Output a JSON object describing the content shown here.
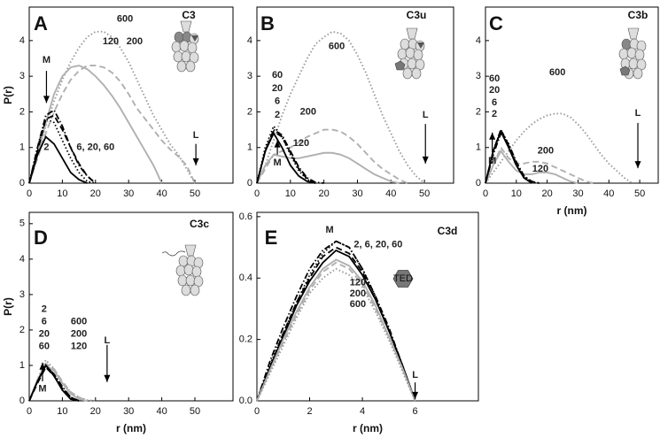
{
  "chart_data": [
    {
      "type": "line",
      "panel": "A",
      "title": "C3",
      "ylabel": "P(r)",
      "x": [
        0,
        2.5,
        5,
        7.5,
        10,
        12.5,
        15,
        17.5,
        20,
        22.5,
        25,
        27.5,
        30,
        32.5,
        35,
        37.5,
        40,
        42.5,
        45,
        47.5,
        50
      ],
      "xlim": [
        0,
        61.5
      ],
      "ylim": [
        0,
        4.94
      ],
      "xticks": [
        0,
        10,
        20,
        30,
        40,
        50
      ],
      "yticks": [
        0,
        1,
        2,
        3,
        4
      ],
      "series": [
        {
          "color": "#9a9a9a",
          "dash": "dotted",
          "values": [
            0,
            0.8,
            1.6,
            2.3,
            2.9,
            3.4,
            3.8,
            4.1,
            4.25,
            4.25,
            4.1,
            3.8,
            3.4,
            2.9,
            2.4,
            1.9,
            1.5,
            1.1,
            0.8,
            0.4,
            0
          ]
        },
        {
          "color": "#b0b0b0",
          "dash": "dashed",
          "values": [
            0,
            0.7,
            1.4,
            2.0,
            2.5,
            2.9,
            3.15,
            3.3,
            3.3,
            3.25,
            3.1,
            2.85,
            2.5,
            2.1,
            1.8,
            1.5,
            1.2,
            0.95,
            0.75,
            0.5,
            0
          ]
        },
        {
          "color": "#b0b0b0",
          "dash": "solid",
          "values": [
            0,
            0.8,
            1.7,
            2.5,
            3.0,
            3.25,
            3.3,
            3.2,
            3.0,
            2.75,
            2.45,
            2.1,
            1.7,
            1.3,
            0.9,
            0.5,
            0,
            null,
            null,
            null,
            null
          ]
        },
        {
          "color": "#000000",
          "dash": "solid",
          "values": [
            0,
            0.8,
            1.3,
            1.1,
            0.7,
            0.3,
            0.1,
            0,
            null,
            null,
            null,
            null,
            null,
            null,
            null,
            null,
            null,
            null,
            null,
            null,
            null
          ]
        },
        {
          "color": "#000000",
          "dash": "dotted",
          "values": [
            0,
            1.0,
            1.8,
            1.7,
            1.2,
            0.7,
            0.3,
            0.05,
            0,
            null,
            null,
            null,
            null,
            null,
            null,
            null,
            null,
            null,
            null,
            null,
            null
          ]
        },
        {
          "color": "#000000",
          "dash": "dashdot",
          "values": [
            0,
            1.0,
            1.9,
            2.05,
            1.6,
            1.0,
            0.5,
            0.2,
            0,
            null,
            null,
            null,
            null,
            null,
            null,
            null,
            null,
            null,
            null,
            null,
            null
          ]
        },
        {
          "color": "#000000",
          "dash": "dashed",
          "values": [
            0,
            0.9,
            1.8,
            1.9,
            1.5,
            1.0,
            0.55,
            0.2,
            0,
            null,
            null,
            null,
            null,
            null,
            null,
            null,
            null,
            null,
            null,
            null,
            null
          ]
        }
      ],
      "annotations": [
        "600",
        "120",
        "200",
        "M",
        "2",
        "6, 20, 60",
        "L"
      ]
    },
    {
      "type": "line",
      "panel": "B",
      "title": "C3u",
      "x": [
        0,
        2.5,
        5,
        7.5,
        10,
        12.5,
        15,
        17.5,
        20,
        22.5,
        25,
        27.5,
        30,
        32.5,
        35,
        37.5,
        40,
        42.5,
        45,
        47.5,
        50
      ],
      "xlim": [
        0,
        58.7
      ],
      "ylim": [
        0,
        4.94
      ],
      "xticks": [
        0,
        10,
        20,
        30,
        40,
        50
      ],
      "yticks": [
        0,
        1,
        2,
        3,
        4
      ],
      "series": [
        {
          "color": "#9a9a9a",
          "dash": "dotted",
          "values": [
            0,
            0.5,
            1.2,
            1.9,
            2.5,
            3.0,
            3.5,
            3.9,
            4.1,
            4.25,
            4.2,
            4.0,
            3.6,
            3.1,
            2.5,
            1.9,
            1.4,
            0.9,
            0.5,
            0.2,
            0
          ]
        },
        {
          "color": "#b0b0b0",
          "dash": "dashed",
          "values": [
            0,
            0.4,
            0.8,
            0.9,
            1.0,
            1.15,
            1.3,
            1.4,
            1.5,
            1.5,
            1.45,
            1.3,
            1.1,
            0.85,
            0.6,
            0.4,
            0.25,
            0.1,
            0,
            null,
            null
          ]
        },
        {
          "color": "#b0b0b0",
          "dash": "solid",
          "values": [
            0,
            0.5,
            0.8,
            0.75,
            0.7,
            0.7,
            0.75,
            0.8,
            0.85,
            0.85,
            0.8,
            0.7,
            0.55,
            0.4,
            0.25,
            0.15,
            0.05,
            0,
            null,
            null,
            null
          ]
        },
        {
          "color": "#000000",
          "dash": "solid",
          "values": [
            0,
            0.9,
            1.4,
            1.0,
            0.5,
            0.2,
            0.05,
            0,
            null,
            null,
            null,
            null,
            null,
            null,
            null,
            null,
            null,
            null,
            null,
            null,
            null
          ]
        },
        {
          "color": "#000000",
          "dash": "dotted",
          "values": [
            0,
            1.0,
            1.6,
            1.3,
            0.8,
            0.35,
            0.1,
            0,
            null,
            null,
            null,
            null,
            null,
            null,
            null,
            null,
            null,
            null,
            null,
            null,
            null
          ]
        },
        {
          "color": "#000000",
          "dash": "dashdot",
          "values": [
            0,
            0.9,
            1.5,
            1.35,
            0.9,
            0.45,
            0.15,
            0.02,
            0,
            null,
            null,
            null,
            null,
            null,
            null,
            null,
            null,
            null,
            null,
            null,
            null
          ]
        },
        {
          "color": "#000000",
          "dash": "dashed",
          "values": [
            0,
            0.9,
            1.45,
            1.3,
            0.85,
            0.4,
            0.12,
            0,
            null,
            null,
            null,
            null,
            null,
            null,
            null,
            null,
            null,
            null,
            null,
            null,
            null
          ]
        }
      ],
      "annotations": [
        "600",
        "60",
        "20",
        "6",
        "2",
        "200",
        "120",
        "M",
        "L"
      ]
    },
    {
      "type": "line",
      "panel": "C",
      "title": "C3b",
      "xlabel": "r (nm)",
      "x": [
        0,
        2.5,
        5,
        7.5,
        10,
        12.5,
        15,
        17.5,
        20,
        22.5,
        25,
        27.5,
        30,
        32.5,
        35,
        37.5,
        40,
        42.5,
        45,
        47.5
      ],
      "xlim": [
        0,
        56
      ],
      "ylim": [
        0,
        4.94
      ],
      "xticks": [
        0,
        10,
        20,
        30,
        40,
        50
      ],
      "yticks": [
        0,
        1,
        2,
        3,
        4
      ],
      "series": [
        {
          "color": "#9a9a9a",
          "dash": "dotted",
          "values": [
            0,
            0.3,
            0.6,
            0.9,
            1.2,
            1.45,
            1.65,
            1.8,
            1.9,
            1.95,
            1.95,
            1.85,
            1.65,
            1.4,
            1.1,
            0.8,
            0.55,
            0.35,
            0.15,
            0
          ]
        },
        {
          "color": "#b0b0b0",
          "dash": "dashed",
          "values": [
            0,
            0.5,
            1.0,
            0.7,
            0.55,
            0.55,
            0.6,
            0.6,
            0.55,
            0.45,
            0.35,
            0.25,
            0.15,
            0.05,
            0,
            null,
            null,
            null,
            null,
            null
          ]
        },
        {
          "color": "#b0b0b0",
          "dash": "solid",
          "values": [
            0,
            0.5,
            0.9,
            0.6,
            0.35,
            0.25,
            0.25,
            0.3,
            0.3,
            0.25,
            0.15,
            0.05,
            0,
            null,
            null,
            null,
            null,
            null,
            null,
            null
          ]
        },
        {
          "color": "#000000",
          "dash": "solid",
          "values": [
            0,
            0.9,
            1.45,
            1.0,
            0.5,
            0.15,
            0,
            null,
            null,
            null,
            null,
            null,
            null,
            null,
            null,
            null,
            null,
            null,
            null,
            null
          ]
        },
        {
          "color": "#000000",
          "dash": "dotted",
          "values": [
            0,
            0.9,
            1.5,
            1.1,
            0.55,
            0.2,
            0.02,
            0,
            null,
            null,
            null,
            null,
            null,
            null,
            null,
            null,
            null,
            null,
            null,
            null
          ]
        },
        {
          "color": "#000000",
          "dash": "dashdot",
          "values": [
            0,
            0.8,
            1.4,
            1.1,
            0.6,
            0.2,
            0.05,
            0,
            null,
            null,
            null,
            null,
            null,
            null,
            null,
            null,
            null,
            null,
            null,
            null
          ]
        },
        {
          "color": "#000000",
          "dash": "dashed",
          "values": [
            0,
            0.9,
            1.5,
            1.05,
            0.5,
            0.15,
            0,
            null,
            null,
            null,
            null,
            null,
            null,
            null,
            null,
            null,
            null,
            null,
            null,
            null
          ]
        }
      ],
      "annotations": [
        "60",
        "20",
        "6",
        "2",
        "600",
        "200",
        "120",
        "M",
        "L"
      ]
    },
    {
      "type": "line",
      "panel": "D",
      "title": "C3c",
      "xlabel": "r (nm)",
      "ylabel": "P(r)",
      "x": [
        0,
        2.5,
        5,
        7.5,
        10,
        12.5,
        15,
        17.5,
        20
      ],
      "xlim": [
        0,
        61.5
      ],
      "ylim": [
        0,
        5.32
      ],
      "xticks": [
        0,
        10,
        20,
        30,
        40,
        50
      ],
      "yticks": [
        0,
        1,
        2,
        3,
        4,
        5
      ],
      "series": [
        {
          "color": "#9a9a9a",
          "dash": "dotted",
          "values": [
            0,
            0.6,
            1.15,
            0.9,
            0.5,
            0.25,
            0.1,
            0.02,
            0
          ]
        },
        {
          "color": "#b0b0b0",
          "dash": "dashed",
          "values": [
            0,
            0.6,
            1.05,
            0.9,
            0.55,
            0.25,
            0.1,
            0,
            null
          ]
        },
        {
          "color": "#b0b0b0",
          "dash": "solid",
          "values": [
            0,
            0.6,
            1.0,
            0.85,
            0.5,
            0.2,
            0.05,
            0,
            null
          ]
        },
        {
          "color": "#000000",
          "dash": "solid",
          "values": [
            0,
            0.55,
            1.0,
            0.7,
            0.3,
            0.05,
            0,
            null,
            null
          ]
        },
        {
          "color": "#000000",
          "dash": "dotted",
          "values": [
            0,
            0.55,
            1.0,
            0.75,
            0.35,
            0.1,
            0,
            null,
            null
          ]
        },
        {
          "color": "#000000",
          "dash": "dashdot",
          "values": [
            0,
            0.55,
            1.0,
            0.75,
            0.4,
            0.1,
            0,
            null,
            null
          ]
        },
        {
          "color": "#000000",
          "dash": "dashed",
          "values": [
            0,
            0.5,
            0.95,
            0.7,
            0.35,
            0.1,
            0,
            null,
            null
          ]
        }
      ],
      "annotations": [
        "2",
        "6",
        "20",
        "60",
        "600",
        "200",
        "120",
        "L",
        "M"
      ]
    },
    {
      "type": "line",
      "panel": "E",
      "title": "C3d",
      "xlabel": "r (nm)",
      "icon_label": "TED",
      "x": [
        0,
        0.5,
        1,
        1.5,
        2,
        2.5,
        3,
        3.5,
        4,
        4.5,
        5,
        5.5,
        6
      ],
      "xlim": [
        0,
        8.4
      ],
      "ylim": [
        0,
        0.614
      ],
      "xticks": [
        0,
        2,
        4,
        6
      ],
      "yticks": [
        {
          "value": 0,
          "label": "0.0"
        },
        0.2,
        0.4,
        0.6
      ],
      "series": [
        {
          "color": "#000000",
          "dash": "solid",
          "values": [
            0,
            0.11,
            0.21,
            0.31,
            0.39,
            0.45,
            0.49,
            0.47,
            0.41,
            0.33,
            0.23,
            0.12,
            0
          ]
        },
        {
          "color": "#000000",
          "dash": "dotted",
          "values": [
            0,
            0.12,
            0.22,
            0.32,
            0.41,
            0.48,
            0.52,
            0.5,
            0.43,
            0.34,
            0.23,
            0.12,
            0
          ]
        },
        {
          "color": "#000000",
          "dash": "dashdot",
          "values": [
            0,
            0.13,
            0.24,
            0.34,
            0.43,
            0.49,
            0.52,
            0.5,
            0.43,
            0.34,
            0.24,
            0.12,
            0
          ]
        },
        {
          "color": "#000000",
          "dash": "dashed",
          "values": [
            0,
            0.11,
            0.22,
            0.32,
            0.4,
            0.47,
            0.5,
            0.48,
            0.42,
            0.33,
            0.23,
            0.12,
            0
          ]
        },
        {
          "color": "#b0b0b0",
          "dash": "solid",
          "values": [
            0,
            0.1,
            0.2,
            0.29,
            0.37,
            0.43,
            0.46,
            0.44,
            0.39,
            0.31,
            0.21,
            0.11,
            0
          ]
        },
        {
          "color": "#b0b0b0",
          "dash": "dashed",
          "values": [
            0,
            0.1,
            0.19,
            0.28,
            0.36,
            0.42,
            0.45,
            0.43,
            0.38,
            0.3,
            0.21,
            0.11,
            0
          ]
        },
        {
          "color": "#9a9a9a",
          "dash": "dotted",
          "values": [
            0,
            0.09,
            0.18,
            0.27,
            0.35,
            0.4,
            0.43,
            0.41,
            0.37,
            0.29,
            0.2,
            0.1,
            0
          ]
        }
      ],
      "annotations": [
        "M",
        "2, 6, 20, 60",
        "120",
        "200",
        "600",
        "L"
      ]
    }
  ]
}
